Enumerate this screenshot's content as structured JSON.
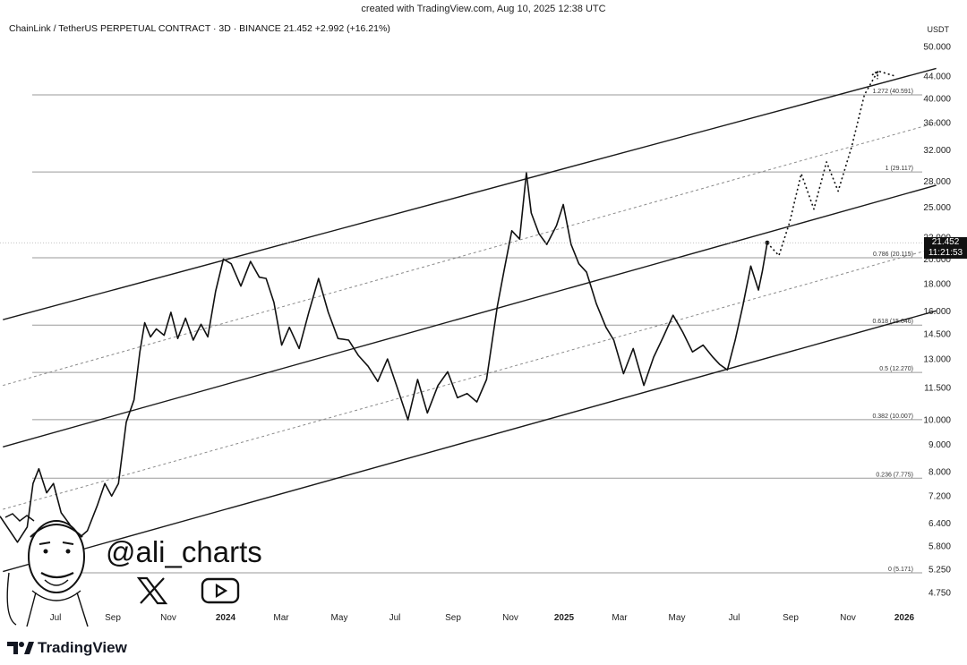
{
  "header": {
    "created": "created with TradingView.com, Aug 10, 2025 12:38 UTC",
    "symbol_line": "ChainLink / TetherUS PERPETUAL CONTRACT · 3D · BINANCE  21.452  +2.992 (+16.21%)"
  },
  "branding": {
    "tradingview": "TradingView",
    "author": "@ali_charts",
    "icons": [
      "tradingview-logo-icon",
      "x-logo-icon",
      "youtube-logo-icon",
      "caricature-avatar"
    ]
  },
  "price_badge": {
    "price": "21.452",
    "countdown": "11:21:53"
  },
  "chart_data": {
    "type": "line",
    "y_axis_unit": "USDT",
    "y_scale": "log",
    "y_ticks": [
      "50.000",
      "44.000",
      "40.000",
      "36.000",
      "32.000",
      "28.000",
      "25.000",
      "22.000",
      "20.000",
      "18.000",
      "16.000",
      "14.500",
      "13.000",
      "11.500",
      "10.000",
      "9.000",
      "8.000",
      "7.200",
      "6.400",
      "5.800",
      "5.250",
      "4.750"
    ],
    "x_ticks": [
      "Jul",
      "Sep",
      "Nov",
      "2024",
      "Mar",
      "May",
      "Jul",
      "Sep",
      "Nov",
      "2025",
      "Mar",
      "May",
      "Jul",
      "Sep",
      "Nov",
      "2026"
    ],
    "fib_levels": [
      {
        "ratio": 1.272,
        "price": 40.591,
        "label": "1.272 (40.591)"
      },
      {
        "ratio": 1,
        "price": 29.117,
        "label": "1 (29.117)"
      },
      {
        "ratio": 0.786,
        "price": 20.115,
        "label": "0.786 (20.115)"
      },
      {
        "ratio": 0.618,
        "price": 15.046,
        "label": "0.618 (15.046)"
      },
      {
        "ratio": 0.5,
        "price": 12.27,
        "label": "0.5 (12.270)"
      },
      {
        "ratio": 0.382,
        "price": 10.007,
        "label": "0.382 (10.007)"
      },
      {
        "ratio": 0.236,
        "price": 7.775,
        "label": "0.236 (7.775)"
      },
      {
        "ratio": 0,
        "price": 5.171,
        "label": "0 (5.171)"
      }
    ],
    "channel_lines": [
      {
        "style": "solid",
        "x": [
          "2023-06-15",
          "2026-01-31"
        ],
        "y": [
          15.4,
          45.5
        ]
      },
      {
        "style": "dotted",
        "x": [
          "2023-06-15",
          "2026-01-31"
        ],
        "y": [
          11.6,
          36.0
        ]
      },
      {
        "style": "solid",
        "x": [
          "2023-06-15",
          "2026-01-31"
        ],
        "y": [
          8.9,
          27.5
        ]
      },
      {
        "style": "dotted",
        "x": [
          "2023-06-15",
          "2026-01-31"
        ],
        "y": [
          6.8,
          21.0
        ]
      },
      {
        "style": "solid",
        "x": [
          "2023-06-15",
          "2026-01-31"
        ],
        "y": [
          5.2,
          16.0
        ]
      }
    ],
    "series": [
      {
        "style": "solid",
        "x": [
          "2023-06-12",
          "2023-06-30",
          "2023-07-10",
          "2023-07-16",
          "2023-07-22",
          "2023-07-30",
          "2023-08-06",
          "2023-08-14",
          "2023-08-22",
          "2023-09-01",
          "2023-09-10",
          "2023-09-20",
          "2023-09-28",
          "2023-10-05",
          "2023-10-12",
          "2023-10-20",
          "2023-10-28",
          "2023-11-03",
          "2023-11-08",
          "2023-11-14",
          "2023-11-20",
          "2023-11-28",
          "2023-12-05",
          "2023-12-12",
          "2023-12-20",
          "2023-12-28",
          "2024-01-05",
          "2024-01-12",
          "2024-01-20",
          "2024-01-28",
          "2024-02-05",
          "2024-02-15",
          "2024-02-25",
          "2024-03-05",
          "2024-03-12",
          "2024-03-20",
          "2024-03-28",
          "2024-04-05",
          "2024-04-15",
          "2024-04-25",
          "2024-05-05",
          "2024-05-15",
          "2024-05-25",
          "2024-06-05",
          "2024-06-15",
          "2024-06-25",
          "2024-07-05",
          "2024-07-15",
          "2024-07-25",
          "2024-08-05",
          "2024-08-15",
          "2024-08-25",
          "2024-09-05",
          "2024-09-15",
          "2024-09-25",
          "2024-10-05",
          "2024-10-15",
          "2024-10-25",
          "2024-11-05",
          "2024-11-12",
          "2024-11-20",
          "2024-11-28",
          "2024-12-05",
          "2024-12-10",
          "2024-12-18",
          "2024-12-26",
          "2025-01-05",
          "2025-01-12",
          "2025-01-20",
          "2025-01-28",
          "2025-02-05",
          "2025-02-15",
          "2025-02-25",
          "2025-03-05",
          "2025-03-15",
          "2025-03-25",
          "2025-04-05",
          "2025-04-15",
          "2025-04-25",
          "2025-05-05",
          "2025-05-15",
          "2025-05-25",
          "2025-06-05",
          "2025-06-15",
          "2025-06-22",
          "2025-06-30",
          "2025-07-08",
          "2025-07-16",
          "2025-07-24",
          "2025-08-01",
          "2025-08-05",
          "2025-08-10"
        ],
        "y": [
          6.6,
          5.9,
          6.3,
          7.6,
          8.1,
          7.3,
          7.6,
          6.7,
          6.4,
          6.0,
          6.2,
          6.9,
          7.6,
          7.2,
          7.6,
          9.9,
          10.9,
          13.4,
          15.2,
          14.3,
          14.8,
          14.4,
          15.9,
          14.2,
          15.5,
          14.1,
          15.1,
          14.3,
          17.4,
          20.0,
          19.6,
          17.8,
          19.8,
          18.5,
          18.4,
          16.6,
          13.8,
          14.9,
          13.6,
          15.9,
          18.4,
          15.9,
          14.2,
          14.1,
          13.2,
          12.6,
          11.8,
          13.0,
          11.5,
          10.0,
          11.9,
          10.3,
          11.6,
          12.3,
          11.0,
          11.2,
          10.8,
          11.9,
          16.3,
          19.0,
          22.6,
          21.8,
          29.0,
          24.4,
          22.3,
          21.3,
          23.1,
          25.3,
          21.3,
          19.6,
          18.9,
          16.5,
          14.9,
          14.1,
          12.2,
          13.6,
          11.6,
          13.1,
          14.3,
          15.7,
          14.6,
          13.4,
          13.8,
          13.1,
          12.7,
          12.4,
          14.1,
          16.4,
          19.4,
          17.5,
          19.0,
          21.452
        ]
      },
      {
        "style": "dotted",
        "x": [
          "2025-08-10",
          "2025-08-22",
          "2025-09-02",
          "2025-09-14",
          "2025-09-27",
          "2025-10-10",
          "2025-10-22",
          "2025-11-05",
          "2025-11-18",
          "2025-12-02",
          "2025-12-20"
        ],
        "y": [
          21.452,
          20.3,
          23.4,
          28.9,
          24.8,
          30.4,
          26.8,
          32.5,
          40.6,
          45.0,
          44.0
        ]
      }
    ]
  }
}
